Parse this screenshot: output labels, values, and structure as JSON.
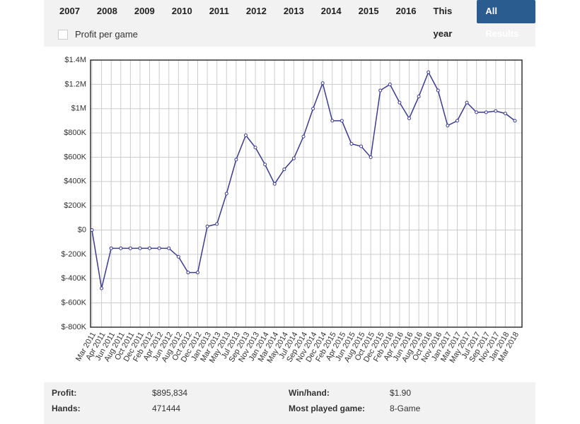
{
  "tabs": [
    {
      "label": "2007",
      "selected": false
    },
    {
      "label": "2008",
      "selected": false
    },
    {
      "label": "2009",
      "selected": false
    },
    {
      "label": "2010",
      "selected": false
    },
    {
      "label": "2011",
      "selected": false
    },
    {
      "label": "2012",
      "selected": false
    },
    {
      "label": "2013",
      "selected": false
    },
    {
      "label": "2014",
      "selected": false
    },
    {
      "label": "2015",
      "selected": false
    },
    {
      "label": "2016",
      "selected": false
    },
    {
      "label": "This year",
      "selected": false
    },
    {
      "label": "All Results",
      "selected": true
    }
  ],
  "checkbox": {
    "label": "Profit per game",
    "checked": false
  },
  "chart_data": {
    "type": "line",
    "color": "#3b3b8f",
    "grid": true,
    "categories": [
      "Mar 2011",
      "Apr 2011",
      "Jun 2011",
      "Aug 2011",
      "Oct 2011",
      "Dec 2011",
      "Feb 2012",
      "Apr 2012",
      "Jun 2012",
      "Aug 2012",
      "Oct 2012",
      "Dec 2012",
      "Jan 2013",
      "Mar 2013",
      "May 2013",
      "Jul 2013",
      "Sep 2013",
      "Nov 2013",
      "Jan 2014",
      "Mar 2014",
      "May 2014",
      "Jul 2014",
      "Sep 2014",
      "Nov 2014",
      "Dec 2014",
      "Feb 2015",
      "Apr 2015",
      "Jun 2015",
      "Aug 2015",
      "Oct 2015",
      "Dec 2015",
      "Feb 2016",
      "Apr 2016",
      "Jun 2016",
      "Aug 2016",
      "Oct 2016",
      "Nov 2016",
      "Jan 2017",
      "Mar 2017",
      "May 2017",
      "Jul 2017",
      "Sep 2017",
      "Nov 2017",
      "Jan 2018",
      "Mar 2018"
    ],
    "values": [
      0,
      -480000,
      -150000,
      -150000,
      -150000,
      -150000,
      -150000,
      -150000,
      -150000,
      -220000,
      -350000,
      -350000,
      30000,
      50000,
      300000,
      580000,
      780000,
      680000,
      540000,
      380000,
      500000,
      590000,
      770000,
      1000000,
      1210000,
      900000,
      900000,
      710000,
      690000,
      600000,
      1150000,
      1200000,
      1050000,
      920000,
      1100000,
      1300000,
      1150000,
      860000,
      900000,
      1050000,
      970000,
      970000,
      980000,
      960000,
      900000
    ],
    "ylim": [
      -800000,
      1400000
    ],
    "yticks": [
      {
        "value": -800000,
        "label": "$-800K"
      },
      {
        "value": -600000,
        "label": "$-600K"
      },
      {
        "value": -400000,
        "label": "$-400K"
      },
      {
        "value": -200000,
        "label": "$-200K"
      },
      {
        "value": 0,
        "label": "$0"
      },
      {
        "value": 200000,
        "label": "$200K"
      },
      {
        "value": 400000,
        "label": "$400K"
      },
      {
        "value": 600000,
        "label": "$600K"
      },
      {
        "value": 800000,
        "label": "$800K"
      },
      {
        "value": 1000000,
        "label": "$1M"
      },
      {
        "value": 1200000,
        "label": "$1.2M"
      },
      {
        "value": 1400000,
        "label": "$1.4M"
      }
    ]
  },
  "stats": [
    {
      "label": "Profit:",
      "value": "$895,834"
    },
    {
      "label": "Win/hand:",
      "value": "$1.90"
    },
    {
      "label": "Hands:",
      "value": "471444"
    },
    {
      "label": "Most played game:",
      "value": "8-Game"
    }
  ]
}
